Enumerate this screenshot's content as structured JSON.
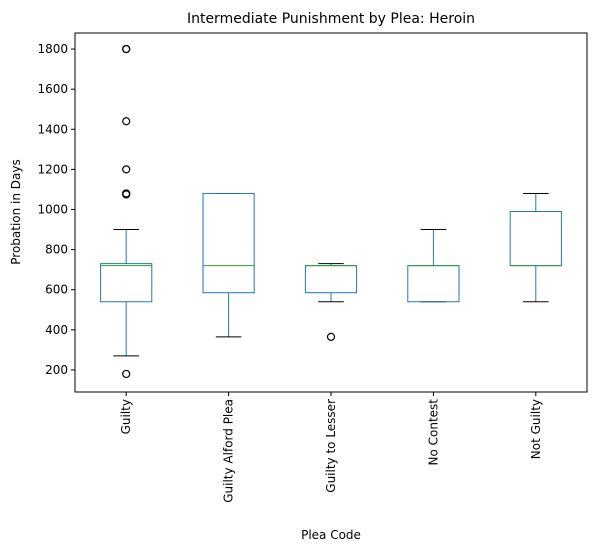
{
  "chart_data": {
    "type": "box",
    "title": "Intermediate Punishment by Plea: Heroin",
    "xlabel": "Plea Code",
    "ylabel": "Probation in Days",
    "ylim": [
      90,
      1880
    ],
    "yticks": [
      200,
      400,
      600,
      800,
      1000,
      1200,
      1400,
      1600,
      1800
    ],
    "categories": [
      "Guilty",
      "Guilty Alford Plea",
      "Guilty to Lesser",
      "No Contest",
      "Not Guilty"
    ],
    "boxes": [
      {
        "category": "Guilty",
        "whisker_low": 270,
        "q1": 540,
        "median": 720,
        "q3": 730,
        "whisker_high": 900,
        "outliers": [
          180,
          1075,
          1080,
          1200,
          1440,
          1800,
          1800
        ]
      },
      {
        "category": "Guilty Alford Plea",
        "whisker_low": 365,
        "q1": 585,
        "median": 720,
        "q3": 1080,
        "whisker_high": 1080,
        "outliers": []
      },
      {
        "category": "Guilty to Lesser",
        "whisker_low": 540,
        "q1": 585,
        "median": 720,
        "q3": 720,
        "whisker_high": 730,
        "outliers": [
          365
        ]
      },
      {
        "category": "No Contest",
        "whisker_low": 540,
        "q1": 540,
        "median": 720,
        "q3": 720,
        "whisker_high": 900,
        "outliers": []
      },
      {
        "category": "Not Guilty",
        "whisker_low": 540,
        "q1": 720,
        "median": 720,
        "q3": 990,
        "whisker_high": 1080,
        "outliers": []
      }
    ],
    "colors": {
      "box": "#1f77b4",
      "median": "#2ca02c",
      "whisker": "#1f77b4",
      "cap": "#000000",
      "outlier": "#000000"
    },
    "grid": false,
    "legend": "none"
  }
}
